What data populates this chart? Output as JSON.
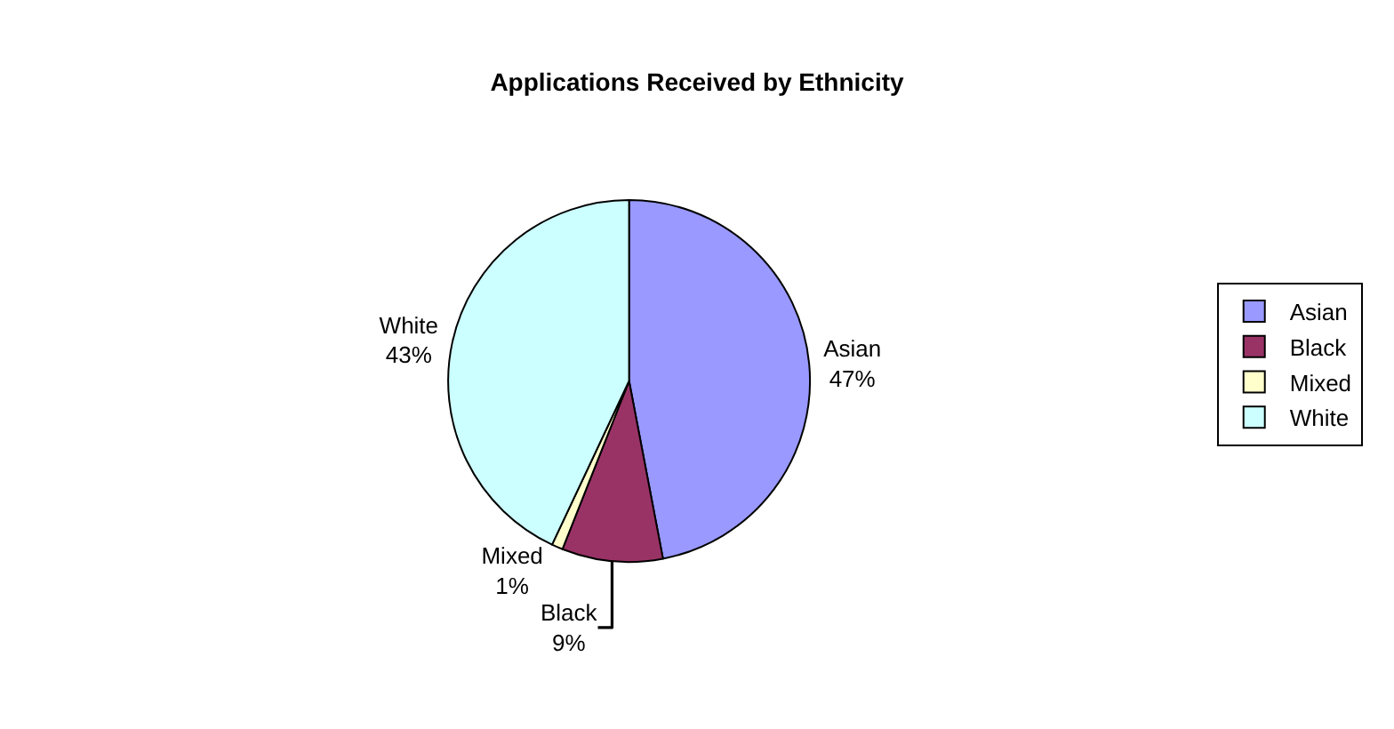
{
  "chart_data": {
    "type": "pie",
    "title": "Applications Received by Ethnicity",
    "categories": [
      "Asian",
      "Black",
      "Mixed",
      "White"
    ],
    "values": [
      47,
      9,
      1,
      43
    ],
    "value_labels": [
      "47%",
      "9%",
      "1%",
      "43%"
    ],
    "colors": [
      "#9999ff",
      "#993366",
      "#ffffcc",
      "#ccffff"
    ],
    "legend": "right"
  }
}
